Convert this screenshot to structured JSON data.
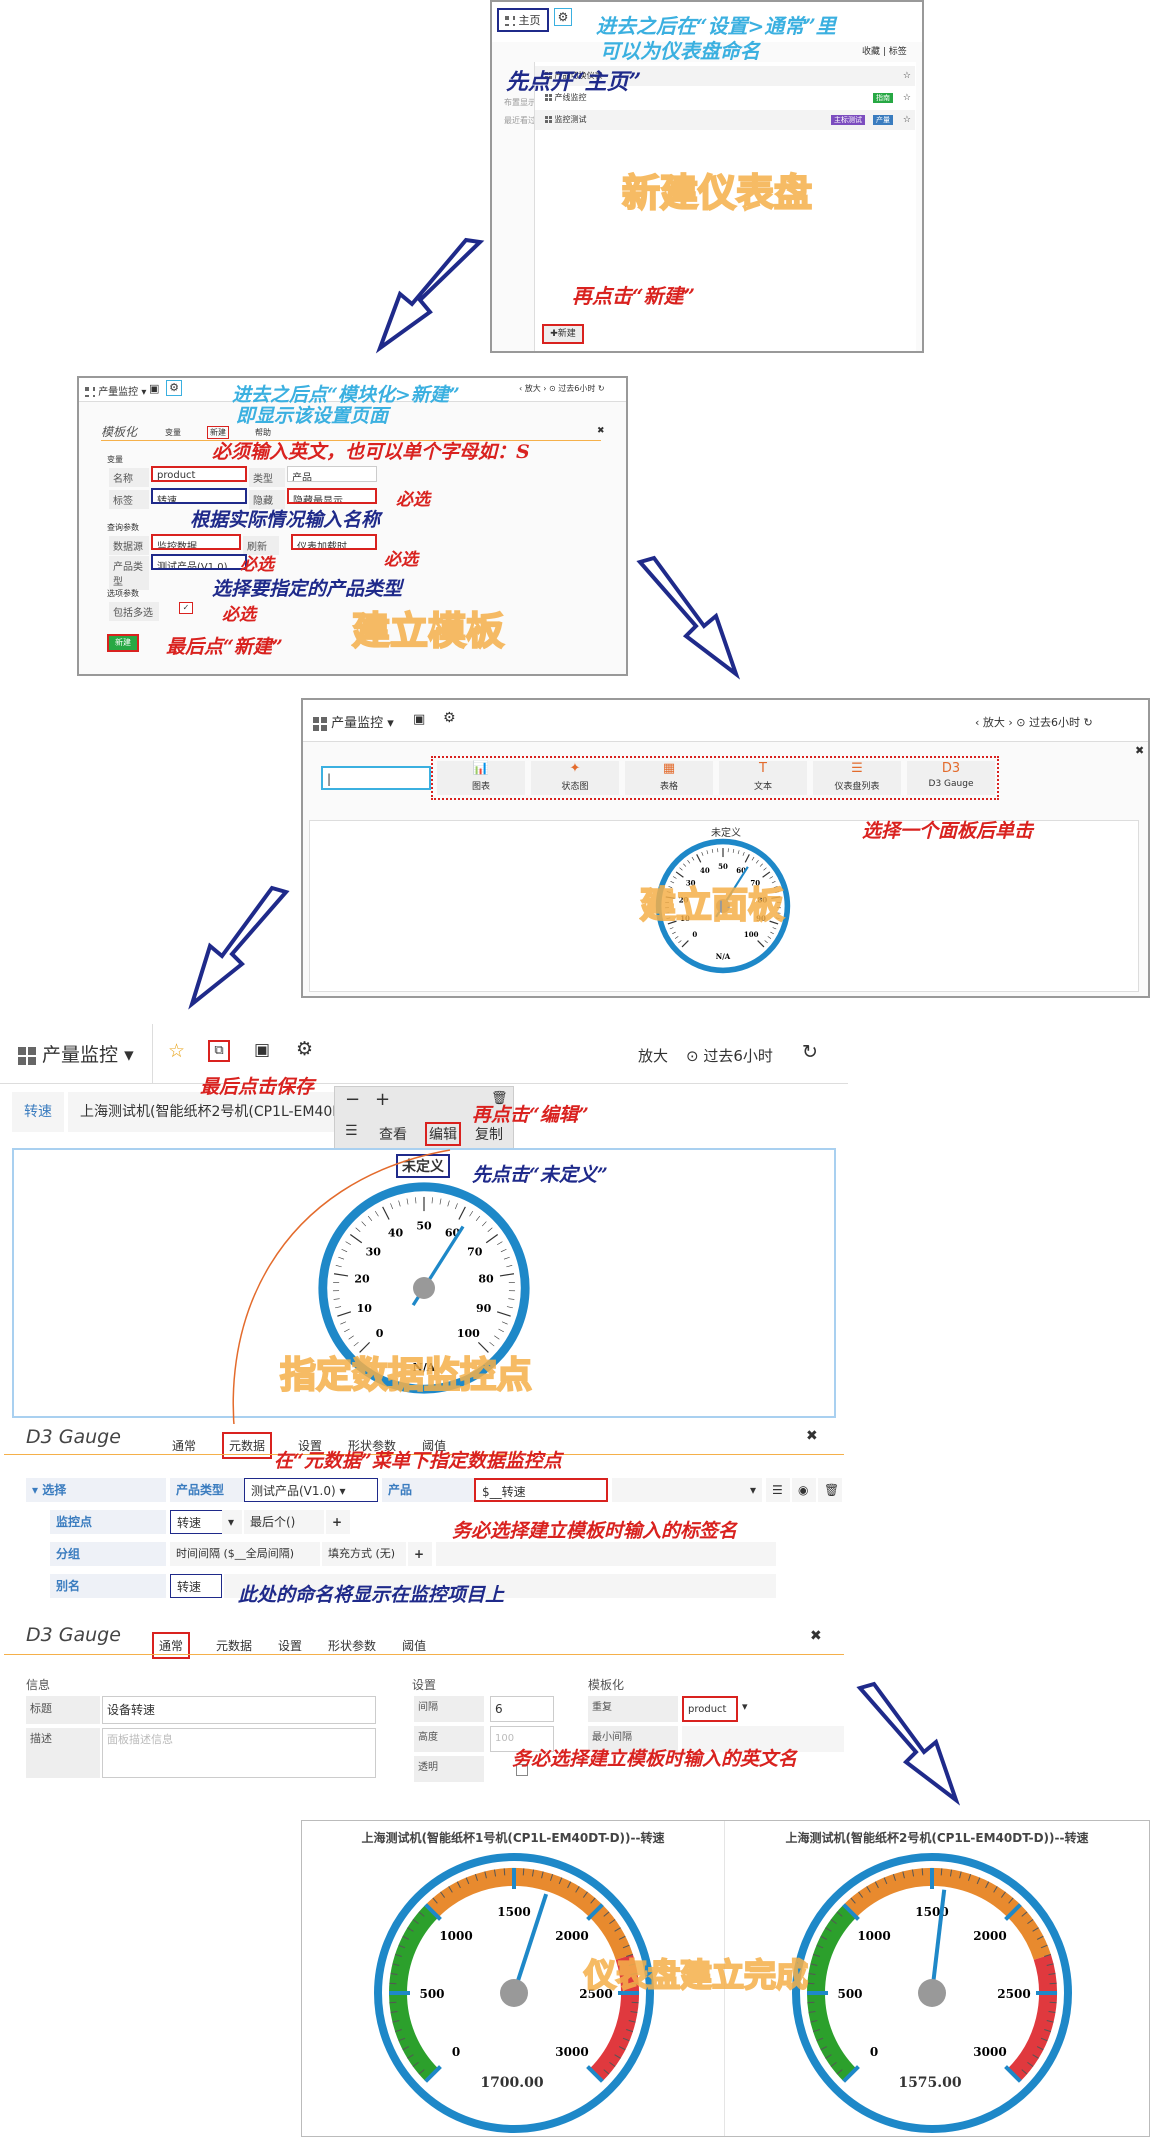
{
  "panel1": {
    "home_label": "主页",
    "header_right": "收藏 | 标签",
    "rows": [
      {
        "label": "产品切换仪表",
        "badges": []
      },
      {
        "label": "产线监控",
        "badges": [
          {
            "text": "指南",
            "color": "#27a844"
          }
        ]
      },
      {
        "label": "监控测试",
        "badges": [
          {
            "text": "主标测试",
            "color": "#7c4dbf"
          },
          {
            "text": "产量",
            "color": "#3a7cbf"
          }
        ]
      }
    ],
    "side1": "布置显示",
    "side2": "最近看过",
    "new_button": "新建",
    "note_gear": "进去之后在“设置>通常”里",
    "note_gear2": "可以为仪表盘命名",
    "note_home": "先点开“主页”",
    "note_new": "再点击“新建”",
    "watermark": "新建仪表盘"
  },
  "panel2": {
    "dash_title": "产量监控",
    "zoom": "放大",
    "range": "过去6小时",
    "section_title": "模板化",
    "tabs": [
      "变量",
      "新建",
      "帮助"
    ],
    "group_var": "变量",
    "name_label": "名称",
    "name_value": "product",
    "type_label": "类型",
    "type_value": "产品",
    "tag_label": "标签",
    "tag_value": "转速",
    "hide_label": "隐藏",
    "hide_value": "隐藏最显示",
    "group_query": "查询参数",
    "ds_label": "数据源",
    "ds_value": "监控数据",
    "refresh_label": "刷新",
    "refresh_value": "仪表加载时",
    "ptype_label": "产品类型",
    "ptype_value": "测试产品(V1.0)",
    "group_opt": "选项参数",
    "multi_label": "包括多选",
    "create_button": "新建",
    "note_top": "进去之后点“模块化>新建”",
    "note_top2": "即显示该设置页面",
    "note_name": "必须输入英文，也可以单个字母如：S",
    "note_tag": "根据实际情况输入名称",
    "req": "必选",
    "note_ptype": "选择要指定的产品类型",
    "note_create": "最后点“新建”",
    "watermark": "建立模板"
  },
  "panel3": {
    "dash_title": "产量监控",
    "zoom": "放大",
    "range": "过去6小时",
    "search_value": "|",
    "types": [
      "图表",
      "状态图",
      "表格",
      "文本",
      "仪表盘列表",
      "D3 Gauge"
    ],
    "gauge_title": "未定义",
    "gauge_value": "N/A",
    "note": "选择一个面板后单击",
    "watermark": "建立面板"
  },
  "panel4": {
    "dash_title": "产量监控",
    "zoom": "放大",
    "range": "过去6小时",
    "var_label": "转速",
    "var_value": "上海测试机(智能纸杯2号机(CP1L-EM40DT-",
    "menu_view": "查看",
    "menu_edit": "编辑",
    "menu_copy": "复制",
    "gauge_title": "未定义",
    "gauge_value": "N/A",
    "note_save": "最后点击保存",
    "note_edit": "再点击“编辑”",
    "note_title": "先点击“未定义”",
    "watermark": "指定数据监控点"
  },
  "panel5": {
    "title": "D3 Gauge",
    "tabs": [
      "通常",
      "元数据",
      "设置",
      "形状参数",
      "阈值"
    ],
    "select_label": "选择",
    "ptype_label": "产品类型",
    "ptype_value": "测试产品(V1.0)",
    "product_label": "产品",
    "product_value": "$__转速",
    "monitor_label": "监控点",
    "monitor_value": "转速",
    "last_label": "最后个()",
    "group_label": "分组",
    "group_value": "时间间隔 ($__全局间隔)",
    "fill_value": "填充方式 (无)",
    "alias_label": "别名",
    "alias_value": "转速",
    "note_meta": "在“元数据”菜单下指定数据监控点",
    "note_product": "务必选择建立模板时输入的标签名",
    "note_alias": "此处的命名将显示在监控项目上"
  },
  "panel6": {
    "title": "D3 Gauge",
    "tabs": [
      "通常",
      "元数据",
      "设置",
      "形状参数",
      "阈值"
    ],
    "info_header": "信息",
    "title_label": "标题",
    "title_value": "设备转速",
    "desc_label": "描述",
    "desc_placeholder": "面板描述信息",
    "settings_header": "设置",
    "span_label": "间隔",
    "span_value": "6",
    "height_label": "高度",
    "height_value": "100",
    "transparent_label": "透明",
    "tmpl_header": "模板化",
    "repeat_label": "重复",
    "repeat_value": "product",
    "minspan_label": "最小间隔",
    "note": "务必选择建立模板时输入的英文名"
  },
  "panel7": {
    "gauges": [
      {
        "title": "上海测试机(智能纸杯1号机(CP1L-EM40DT-D))--转速",
        "value": "1700.00",
        "reading": 1700
      },
      {
        "title": "上海测试机(智能纸杯2号机(CP1L-EM40DT-D))--转速",
        "value": "1575.00",
        "reading": 1575
      }
    ],
    "ticks": [
      "0",
      "500",
      "1000",
      "1500",
      "2000",
      "2500",
      "3000"
    ],
    "watermark": "仪表盘建立完成"
  },
  "colors": {
    "accent": "#1e88c8",
    "red": "#d9221f",
    "blue": "#1f2a8a",
    "orange": "#f5b04a",
    "green": "#2ca02c"
  }
}
